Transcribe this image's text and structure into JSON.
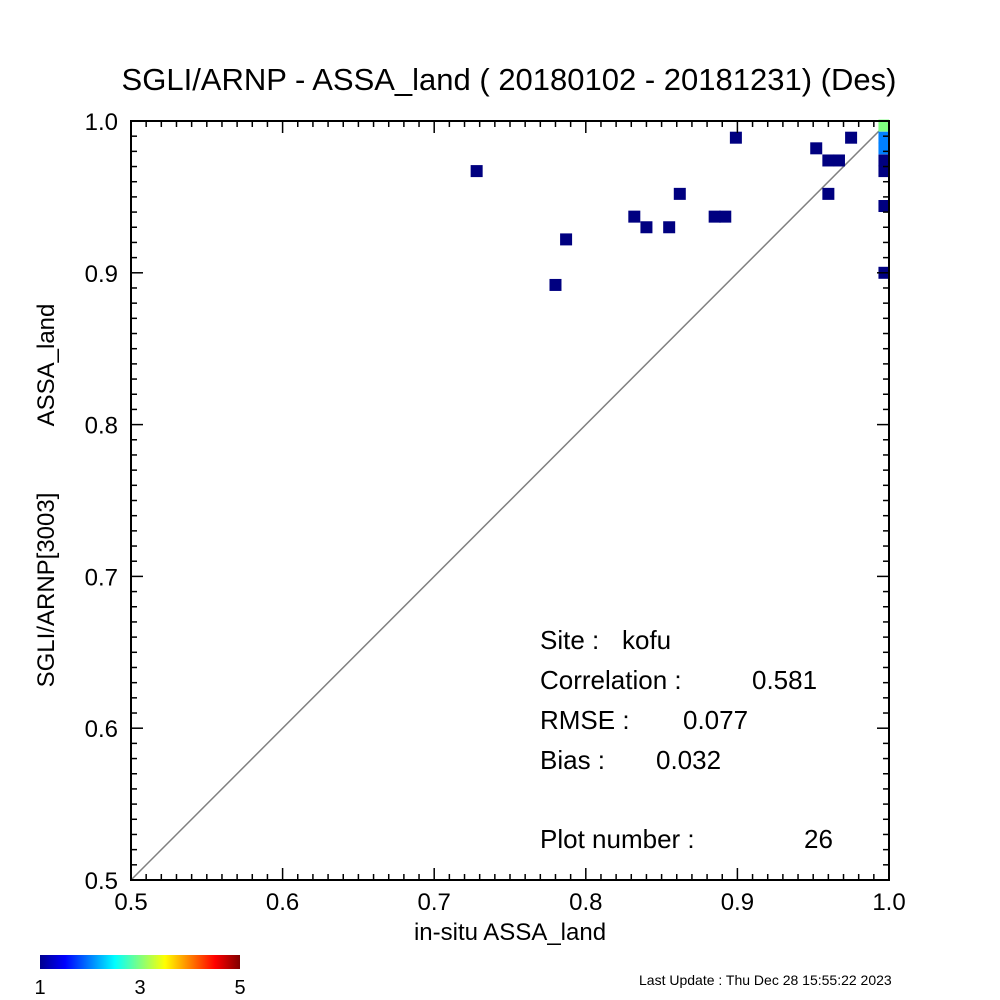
{
  "chart_data": {
    "type": "scatter",
    "title": "SGLI/ARNP - ASSA_land ( 20180102 - 20181231) (Des)",
    "xlabel": "in-situ ASSA_land",
    "ylabel_lines": [
      "SGLI/ARNP[3003]",
      "ASSA_land"
    ],
    "xlim": [
      0.5,
      1.0
    ],
    "ylim": [
      0.5,
      1.0
    ],
    "xticks": [
      "0.5",
      "0.6",
      "0.7",
      "0.8",
      "0.9",
      "1.0"
    ],
    "yticks": [
      "0.5",
      "0.6",
      "0.7",
      "0.8",
      "0.9",
      "1.0"
    ],
    "identity_line": true,
    "points": [
      {
        "x": 0.728,
        "y": 0.967,
        "count": 1
      },
      {
        "x": 0.78,
        "y": 0.892,
        "count": 1
      },
      {
        "x": 0.787,
        "y": 0.922,
        "count": 1
      },
      {
        "x": 0.832,
        "y": 0.937,
        "count": 1
      },
      {
        "x": 0.84,
        "y": 0.93,
        "count": 1
      },
      {
        "x": 0.855,
        "y": 0.93,
        "count": 1
      },
      {
        "x": 0.862,
        "y": 0.952,
        "count": 1
      },
      {
        "x": 0.885,
        "y": 0.937,
        "count": 1
      },
      {
        "x": 0.892,
        "y": 0.937,
        "count": 1
      },
      {
        "x": 0.899,
        "y": 0.989,
        "count": 1
      },
      {
        "x": 0.952,
        "y": 0.982,
        "count": 1
      },
      {
        "x": 0.96,
        "y": 0.952,
        "count": 1
      },
      {
        "x": 0.96,
        "y": 0.974,
        "count": 1
      },
      {
        "x": 0.967,
        "y": 0.974,
        "count": 1
      },
      {
        "x": 0.975,
        "y": 0.989,
        "count": 1
      },
      {
        "x": 0.997,
        "y": 0.997,
        "count": 3
      },
      {
        "x": 0.997,
        "y": 0.989,
        "count": 2
      },
      {
        "x": 0.997,
        "y": 0.982,
        "count": 2
      },
      {
        "x": 0.997,
        "y": 0.974,
        "count": 1
      },
      {
        "x": 0.997,
        "y": 0.967,
        "count": 1
      },
      {
        "x": 0.997,
        "y": 0.944,
        "count": 1
      },
      {
        "x": 0.997,
        "y": 0.9,
        "count": 1
      }
    ],
    "stats": {
      "site_label": "Site :",
      "site_value": "kofu",
      "correlation_label": "Correlation :",
      "correlation_value": "0.581",
      "rmse_label": "RMSE :",
      "rmse_value": "0.077",
      "bias_label": "Bias :",
      "bias_value": "0.032",
      "plot_number_label": "Plot number :",
      "plot_number_value": "26"
    },
    "colorbar": {
      "min": 1,
      "max": 5,
      "tick_labels": [
        "1",
        "3",
        "5"
      ],
      "colormap": "jet"
    },
    "grid": false,
    "legend": "none"
  },
  "footer": {
    "last_update": "Last Update : Thu Dec 28 15:55:22 2023"
  },
  "colors": {
    "identity_line": "#808080",
    "axis": "#000000",
    "low_count": "#00008f",
    "high_count": "#800000"
  }
}
